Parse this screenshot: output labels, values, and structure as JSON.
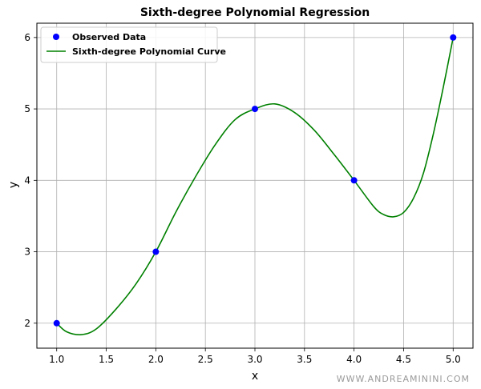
{
  "chart_data": {
    "type": "line",
    "title": "Sixth-degree Polynomial Regression",
    "xlabel": "x",
    "ylabel": "y",
    "xlim": [
      0.8,
      5.2
    ],
    "ylim": [
      1.65,
      6.2
    ],
    "x_ticks": [
      "1.0",
      "1.5",
      "2.0",
      "2.5",
      "3.0",
      "3.5",
      "4.0",
      "4.5",
      "5.0"
    ],
    "y_ticks": [
      "2",
      "3",
      "4",
      "5",
      "6"
    ],
    "grid": true,
    "legend_position": "top-left",
    "series": [
      {
        "name": "Observed Data",
        "type": "scatter",
        "color": "#0000ff",
        "x": [
          1,
          2,
          3,
          4,
          5
        ],
        "y": [
          2,
          3,
          5,
          4,
          6
        ]
      },
      {
        "name": "Sixth-degree Polynomial Curve",
        "type": "line",
        "color": "#008000",
        "x": [
          1.0,
          1.1,
          1.25,
          1.4,
          1.6,
          1.8,
          2.0,
          2.2,
          2.4,
          2.6,
          2.8,
          3.0,
          3.2,
          3.4,
          3.6,
          3.8,
          4.0,
          4.2,
          4.3,
          4.4,
          4.5,
          4.6,
          4.7,
          4.8,
          4.9,
          5.0
        ],
        "y": [
          2.0,
          1.88,
          1.84,
          1.92,
          2.2,
          2.55,
          3.0,
          3.55,
          4.05,
          4.5,
          4.85,
          5.0,
          5.07,
          4.95,
          4.7,
          4.36,
          4.0,
          3.63,
          3.52,
          3.49,
          3.55,
          3.75,
          4.1,
          4.65,
          5.3,
          6.0
        ]
      }
    ]
  },
  "watermark": "WWW.ANDREAMININI.COM"
}
